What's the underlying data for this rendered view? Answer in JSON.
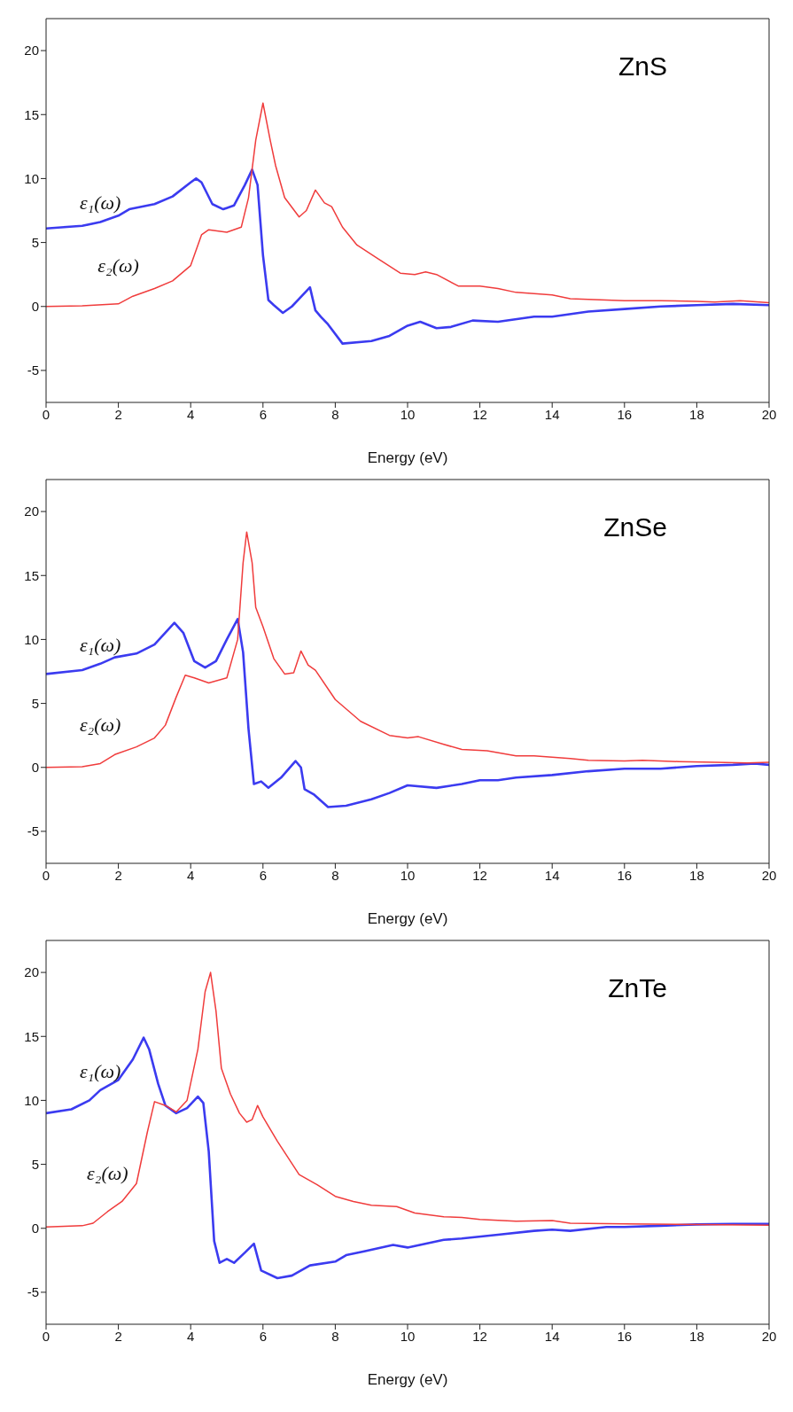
{
  "chart_data": [
    {
      "type": "line",
      "title": "ZnS",
      "xlabel": "Energy (eV)",
      "xlim": [
        0,
        20
      ],
      "xticks": [
        0,
        2,
        4,
        6,
        8,
        10,
        12,
        14,
        16,
        18,
        20
      ],
      "ylim": [
        -7.5,
        22.5
      ],
      "yticks": [
        -5,
        0,
        5,
        10,
        15,
        20
      ],
      "grid": false,
      "legend": false,
      "marker": "none",
      "line_style": "solid",
      "series": [
        {
          "name": "ε₁(ω)",
          "color": "#3b3bf0",
          "x": [
            0,
            1,
            1.5,
            2,
            2.3,
            3,
            3.5,
            4,
            4.15,
            4.3,
            4.6,
            4.9,
            5.2,
            5.5,
            5.7,
            5.85,
            6.0,
            6.15,
            6.3,
            6.55,
            6.8,
            7.0,
            7.3,
            7.45,
            7.6,
            7.8,
            8.2,
            9,
            9.5,
            10,
            10.35,
            10.8,
            11.2,
            11.8,
            12.5,
            13.5,
            14,
            15,
            16,
            17,
            18,
            19,
            20
          ],
          "values": [
            6.1,
            6.3,
            6.6,
            7.1,
            7.6,
            8.0,
            8.6,
            9.7,
            10.0,
            9.7,
            8.0,
            7.6,
            7.9,
            9.5,
            10.7,
            9.5,
            4,
            0.5,
            0.1,
            -0.5,
            0.0,
            0.6,
            1.5,
            -0.3,
            -0.8,
            -1.4,
            -2.9,
            -2.7,
            -2.3,
            -1.5,
            -1.2,
            -1.7,
            -1.6,
            -1.1,
            -1.2,
            -0.8,
            -0.8,
            -0.4,
            -0.2,
            0.0,
            0.1,
            0.2,
            0.1
          ]
        },
        {
          "name": "ε₂(ω)",
          "color": "#f03c3c",
          "x": [
            0,
            1,
            2,
            2.4,
            3,
            3.5,
            4,
            4.3,
            4.5,
            5,
            5.4,
            5.6,
            5.8,
            6.0,
            6.2,
            6.35,
            6.6,
            7.0,
            7.2,
            7.45,
            7.7,
            7.9,
            8.2,
            8.6,
            9.2,
            9.8,
            10.2,
            10.5,
            10.8,
            11.4,
            12,
            12.5,
            13,
            13.5,
            14,
            14.5,
            16,
            17,
            18,
            18.5,
            19.2,
            20
          ],
          "values": [
            0,
            0.05,
            0.2,
            0.8,
            1.4,
            2.0,
            3.2,
            5.6,
            6.0,
            5.8,
            6.2,
            8.5,
            13,
            15.9,
            13,
            11,
            8.5,
            7.0,
            7.5,
            9.1,
            8.1,
            7.8,
            6.2,
            4.8,
            3.7,
            2.6,
            2.5,
            2.7,
            2.5,
            1.6,
            1.6,
            1.4,
            1.1,
            1.0,
            0.9,
            0.6,
            0.45,
            0.45,
            0.4,
            0.35,
            0.45,
            0.3
          ]
        }
      ]
    },
    {
      "type": "line",
      "title": "ZnSe",
      "xlabel": "Energy (eV)",
      "xlim": [
        0,
        20
      ],
      "xticks": [
        0,
        2,
        4,
        6,
        8,
        10,
        12,
        14,
        16,
        18,
        20
      ],
      "ylim": [
        -7.5,
        22.5
      ],
      "yticks": [
        -5,
        0,
        5,
        10,
        15,
        20
      ],
      "grid": false,
      "legend": false,
      "marker": "none",
      "line_style": "solid",
      "series": [
        {
          "name": "ε₁(ω)",
          "color": "#3b3bf0",
          "x": [
            0,
            1,
            1.5,
            1.9,
            2.5,
            3,
            3.55,
            3.8,
            4.1,
            4.4,
            4.7,
            5.0,
            5.3,
            5.45,
            5.6,
            5.75,
            5.95,
            6.15,
            6.5,
            6.9,
            7.05,
            7.15,
            7.4,
            7.8,
            8.3,
            9,
            9.5,
            10,
            10.8,
            11.5,
            12,
            12.5,
            13,
            14,
            15,
            16,
            17,
            18,
            19,
            19.6,
            20
          ],
          "values": [
            7.3,
            7.6,
            8.1,
            8.6,
            8.9,
            9.6,
            11.3,
            10.5,
            8.3,
            7.8,
            8.3,
            10,
            11.6,
            9,
            3,
            -1.3,
            -1.1,
            -1.6,
            -0.8,
            0.5,
            0,
            -1.7,
            -2.1,
            -3.1,
            -3.0,
            -2.5,
            -2.0,
            -1.4,
            -1.6,
            -1.3,
            -1.0,
            -1.0,
            -0.8,
            -0.6,
            -0.3,
            -0.1,
            -0.1,
            0.1,
            0.2,
            0.3,
            0.2
          ]
        },
        {
          "name": "ε₂(ω)",
          "color": "#f03c3c",
          "x": [
            0,
            1,
            1.5,
            1.9,
            2.5,
            3,
            3.3,
            3.6,
            3.85,
            4.1,
            4.5,
            5.0,
            5.3,
            5.45,
            5.55,
            5.7,
            5.8,
            6.0,
            6.3,
            6.6,
            6.85,
            7.05,
            7.25,
            7.45,
            8,
            8.7,
            9.5,
            10,
            10.3,
            11,
            11.5,
            12.2,
            13,
            13.5,
            14.5,
            15,
            16,
            16.5,
            17.5,
            18.5,
            19.4,
            20
          ],
          "values": [
            0,
            0.05,
            0.3,
            1.0,
            1.6,
            2.3,
            3.3,
            5.5,
            7.2,
            7.0,
            6.6,
            7.0,
            10,
            16,
            18.4,
            16,
            12.5,
            11,
            8.5,
            7.3,
            7.4,
            9.1,
            8.0,
            7.6,
            5.3,
            3.6,
            2.5,
            2.3,
            2.4,
            1.8,
            1.4,
            1.3,
            0.9,
            0.9,
            0.7,
            0.55,
            0.5,
            0.55,
            0.45,
            0.4,
            0.35,
            0.4
          ]
        }
      ]
    },
    {
      "type": "line",
      "title": "ZnTe",
      "xlabel": "Energy (eV)",
      "xlim": [
        0,
        20
      ],
      "xticks": [
        0,
        2,
        4,
        6,
        8,
        10,
        12,
        14,
        16,
        18,
        20
      ],
      "ylim": [
        -7.5,
        22.5
      ],
      "yticks": [
        -5,
        0,
        5,
        10,
        15,
        20
      ],
      "grid": false,
      "legend": false,
      "marker": "none",
      "line_style": "solid",
      "series": [
        {
          "name": "ε₁(ω)",
          "color": "#3b3bf0",
          "x": [
            0,
            0.7,
            1.2,
            1.5,
            2,
            2.4,
            2.7,
            2.85,
            3.1,
            3.3,
            3.6,
            3.9,
            4.2,
            4.35,
            4.5,
            4.65,
            4.8,
            5.0,
            5.2,
            5.5,
            5.75,
            5.95,
            6.4,
            6.8,
            7.3,
            8,
            8.3,
            8.8,
            9.6,
            10,
            11,
            11.5,
            12.5,
            13.5,
            14,
            14.5,
            15.5,
            16,
            17,
            18,
            19,
            20
          ],
          "values": [
            9.0,
            9.3,
            10.0,
            10.8,
            11.6,
            13.2,
            14.9,
            14,
            11.3,
            9.6,
            9.0,
            9.4,
            10.3,
            9.8,
            6,
            -1,
            -2.7,
            -2.4,
            -2.7,
            -1.9,
            -1.2,
            -3.3,
            -3.9,
            -3.7,
            -2.9,
            -2.6,
            -2.1,
            -1.8,
            -1.3,
            -1.5,
            -0.9,
            -0.8,
            -0.5,
            -0.2,
            -0.1,
            -0.2,
            0.1,
            0.1,
            0.2,
            0.3,
            0.35,
            0.35
          ]
        },
        {
          "name": "ε₂(ω)",
          "color": "#f03c3c",
          "x": [
            0,
            1,
            1.3,
            1.7,
            2.1,
            2.5,
            2.8,
            3.0,
            3.3,
            3.6,
            3.9,
            4.2,
            4.4,
            4.55,
            4.7,
            4.85,
            5.1,
            5.35,
            5.55,
            5.7,
            5.85,
            6.0,
            6.4,
            7,
            7.5,
            8,
            8.5,
            9,
            9.7,
            10.2,
            11,
            11.5,
            12,
            13,
            14,
            14.5,
            16,
            18,
            20
          ],
          "values": [
            0.1,
            0.2,
            0.4,
            1.3,
            2.1,
            3.5,
            7.5,
            9.9,
            9.6,
            9.1,
            10,
            14,
            18.5,
            20,
            17,
            12.5,
            10.5,
            9,
            8.3,
            8.5,
            9.6,
            8.7,
            6.8,
            4.2,
            3.4,
            2.5,
            2.1,
            1.8,
            1.7,
            1.2,
            0.9,
            0.85,
            0.7,
            0.55,
            0.6,
            0.4,
            0.35,
            0.3,
            0.25
          ]
        }
      ]
    }
  ]
}
